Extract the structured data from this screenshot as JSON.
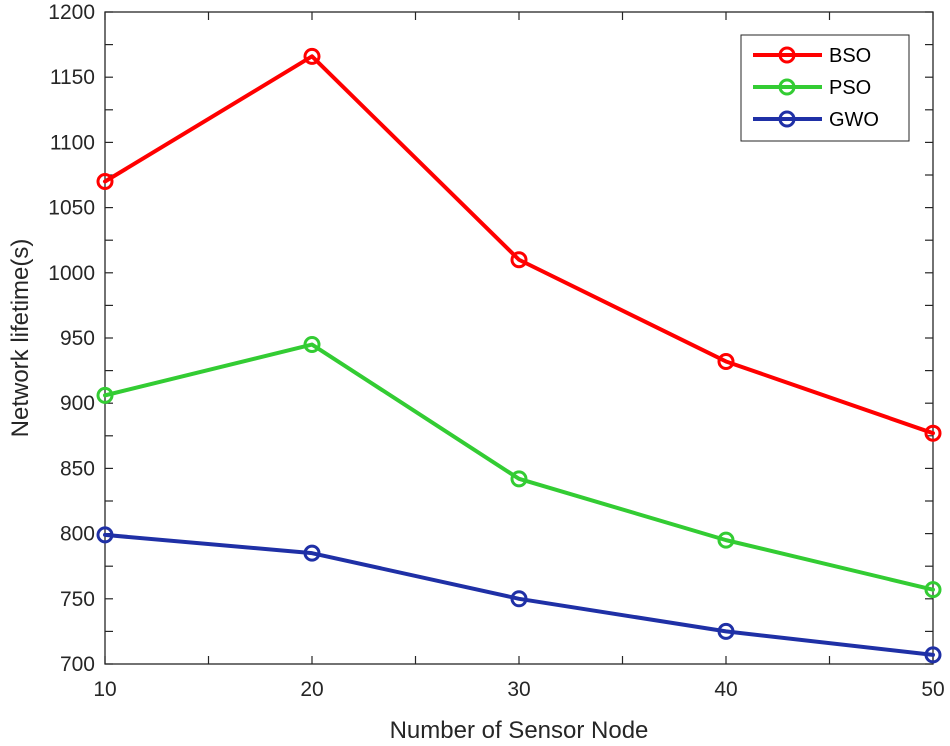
{
  "chart_data": {
    "type": "line",
    "x": [
      10,
      20,
      30,
      40,
      50
    ],
    "series": [
      {
        "name": "BSO",
        "color": "#ff0000",
        "values": [
          1070,
          1166,
          1010,
          932,
          877
        ]
      },
      {
        "name": "PSO",
        "color": "#33cc33",
        "values": [
          906,
          945,
          842,
          795,
          757
        ]
      },
      {
        "name": "GWO",
        "color": "#1f30a6",
        "values": [
          799,
          785,
          750,
          725,
          707
        ]
      }
    ],
    "title": "",
    "xlabel": "Number of Sensor Node",
    "ylabel": "Network lifetime(s)",
    "xlim": [
      10,
      50
    ],
    "ylim": [
      700,
      1200
    ],
    "xticks": [
      10,
      20,
      30,
      40,
      50
    ],
    "yticks": [
      700,
      750,
      800,
      850,
      900,
      950,
      1000,
      1050,
      1100,
      1150,
      1200
    ],
    "grid": false,
    "marker": "circle",
    "legend": "top-right"
  }
}
